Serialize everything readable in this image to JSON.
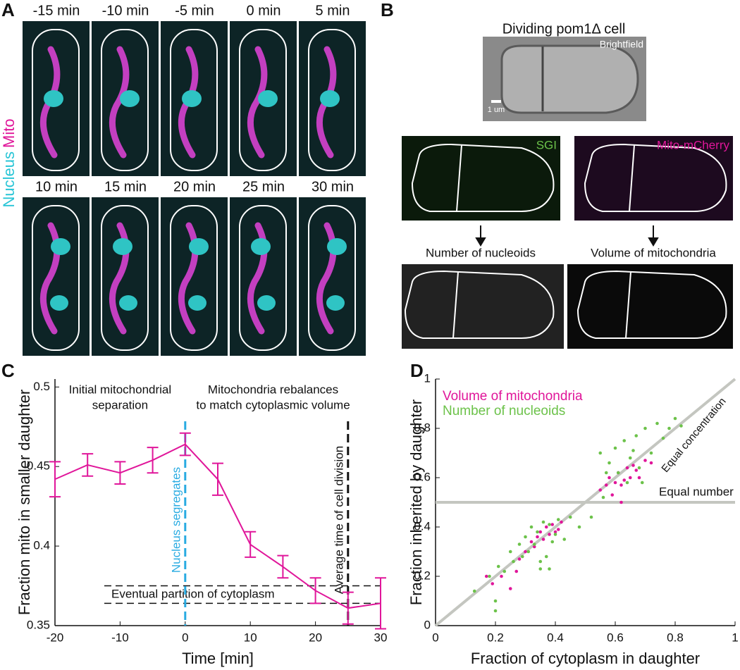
{
  "panels": {
    "A": {
      "letter": "A",
      "channel_labels": [
        "Nucleus",
        "Mito"
      ],
      "times": [
        "-15 min",
        "-10 min",
        "-5 min",
        "0 min",
        "5 min",
        "10 min",
        "15 min",
        "20 min",
        "25 min",
        "30 min"
      ]
    },
    "B": {
      "letter": "B",
      "title": "Dividing pom1Δ cell",
      "brightfield": "Brightfield",
      "scale": "1 um",
      "sgi": "SGI",
      "mito": "Mito-mCherry",
      "nucleoids": "Number of nucleoids",
      "volume": "Volume of mitochondria"
    }
  },
  "chart_data": [
    {
      "type": "line",
      "letter": "C",
      "xlabel": "Time [min]",
      "ylabel": "Fraction mito in smaller daughter",
      "color": "#e0169a",
      "x": [
        -20,
        -15,
        -10,
        -5,
        0,
        5,
        10,
        15,
        20,
        25,
        30
      ],
      "values": [
        0.442,
        0.451,
        0.446,
        0.454,
        0.464,
        0.442,
        0.401,
        0.387,
        0.372,
        0.361,
        0.364
      ],
      "errors": [
        0.011,
        0.007,
        0.007,
        0.008,
        0.007,
        0.01,
        0.008,
        0.007,
        0.008,
        0.01,
        0.016
      ],
      "xlim": [
        -20,
        30
      ],
      "xticks": [
        -20,
        -10,
        0,
        10,
        20,
        30
      ],
      "ylim": [
        0.35,
        0.505
      ],
      "yticks": [
        0.35,
        0.4,
        0.45,
        0.5
      ],
      "vlines": [
        {
          "x": 0,
          "label": "Nucleus segregates",
          "color": "#29abe2"
        },
        {
          "x": 25,
          "label": "Average time of cell division",
          "color": "#111111"
        }
      ],
      "hlines": {
        "values": [
          0.375,
          0.364
        ],
        "label": "Eventual partition of cytoplasm"
      },
      "annotations": [
        {
          "x": -10,
          "lines": [
            "Initial mitochondrial",
            "separation"
          ]
        },
        {
          "x": 13.5,
          "lines": [
            "Mitochondria rebalances",
            "to match cytoplasmic volume"
          ]
        }
      ]
    },
    {
      "type": "scatter",
      "letter": "D",
      "xlabel": "Fraction of cytoplasm in daughter",
      "ylabel": "Fraction inherited by daughter",
      "xlim": [
        0,
        1
      ],
      "xticks": [
        0,
        0.2,
        0.4,
        0.6,
        0.8,
        1
      ],
      "ylim": [
        0,
        1
      ],
      "yticks": [
        0,
        0.2,
        0.4,
        0.6,
        0.8,
        1
      ],
      "series": [
        {
          "name": "Volume of mitochondria",
          "color": "#e0169a",
          "x": [
            0.17,
            0.19,
            0.22,
            0.25,
            0.28,
            0.3,
            0.32,
            0.34,
            0.35,
            0.36,
            0.37,
            0.38,
            0.39,
            0.4,
            0.41,
            0.42,
            0.27,
            0.33,
            0.55,
            0.57,
            0.58,
            0.6,
            0.61,
            0.62,
            0.63,
            0.64,
            0.65,
            0.66,
            0.67,
            0.68,
            0.7,
            0.72,
            0.59,
            0.62
          ],
          "values": [
            0.2,
            0.17,
            0.2,
            0.15,
            0.27,
            0.3,
            0.34,
            0.36,
            0.38,
            0.35,
            0.4,
            0.37,
            0.41,
            0.38,
            0.39,
            0.42,
            0.22,
            0.32,
            0.55,
            0.57,
            0.6,
            0.58,
            0.62,
            0.5,
            0.59,
            0.64,
            0.6,
            0.65,
            0.63,
            0.6,
            0.67,
            0.66,
            0.53,
            0.57
          ]
        },
        {
          "name": "Number of nucleoids",
          "color": "#6cc24a",
          "x": [
            0.13,
            0.18,
            0.2,
            0.21,
            0.23,
            0.25,
            0.26,
            0.28,
            0.29,
            0.3,
            0.31,
            0.32,
            0.33,
            0.34,
            0.35,
            0.36,
            0.37,
            0.38,
            0.39,
            0.4,
            0.41,
            0.43,
            0.45,
            0.48,
            0.2,
            0.35,
            0.38,
            0.52,
            0.55,
            0.56,
            0.58,
            0.6,
            0.61,
            0.63,
            0.64,
            0.65,
            0.67,
            0.68,
            0.7,
            0.72,
            0.74,
            0.76,
            0.78,
            0.8,
            0.82,
            0.57,
            0.66,
            0.69
          ],
          "values": [
            0.14,
            0.2,
            0.06,
            0.24,
            0.22,
            0.3,
            0.26,
            0.33,
            0.28,
            0.36,
            0.3,
            0.4,
            0.33,
            0.38,
            0.23,
            0.42,
            0.28,
            0.41,
            0.34,
            0.37,
            0.43,
            0.35,
            0.44,
            0.4,
            0.1,
            0.26,
            0.23,
            0.44,
            0.7,
            0.52,
            0.66,
            0.72,
            0.62,
            0.75,
            0.58,
            0.68,
            0.77,
            0.64,
            0.8,
            0.7,
            0.82,
            0.76,
            0.8,
            0.84,
            0.81,
            0.62,
            0.71,
            0.58
          ]
        }
      ],
      "lines": [
        {
          "label": "Equal number",
          "y": 0.5
        },
        {
          "label": "Equal concentration",
          "x": [
            0,
            1
          ],
          "values": [
            0,
            1
          ]
        }
      ],
      "line_color": "#c4c6c0"
    }
  ]
}
